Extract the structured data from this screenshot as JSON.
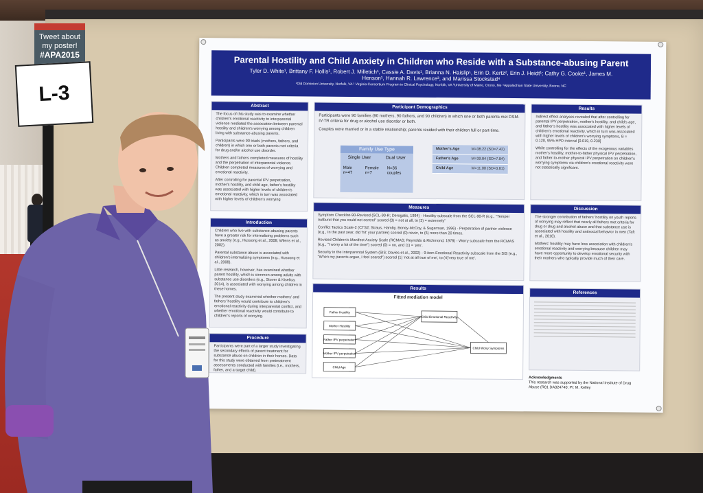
{
  "signs": {
    "tweet_line1": "Tweet about",
    "tweet_line2": "my poster!",
    "tweet_tag": "#APA2015",
    "booth": "L-3"
  },
  "poster": {
    "title": "Parental Hostility and Child Anxiety in Children who Reside with a Substance-abusing Parent",
    "authors": "Tyler D. White¹, Brittany F. Hollis¹, Robert J. Milletich¹, Cassie A. Davis¹, Brianna N. Haislip¹, Erin D. Kertz², Erin J. Heidt¹; Cathy G. Cooke¹, James M. Henson¹, Hannah R. Lawrence³, and Marissa Stockstad⁴",
    "affiliations": "¹Old Dominion University, Norfolk, VA ² Virginia Consortium Program in Clinical Psychology, Norfolk, VA ³University of Maine, Orono, Me ⁴Appalachian State University, Boone, NC",
    "abstract": {
      "heading": "Abstract",
      "paras": [
        "The focus of this study was to examine whether children's emotional reactivity to interparental violence mediated the association between parental hostility and children's worrying among children living with substance-abusing parents.",
        "Participants were 90 triads (mothers, fathers, and children) in which one or both parents met criteria for drug and/or alcohol use disorder.",
        "Mothers and fathers completed measures of hostility and the perpetration of interparental violence. Children completed measures of worrying and emotional reactivity.",
        "After controlling for parental IPV perpetration, mother's hostility, and child age, father's hostility was associated with higher levels of children's emotional reactivity, which in turn was associated with higher levels of children's worrying"
      ]
    },
    "introduction": {
      "heading": "Introduction",
      "paras": [
        "Children who live with substance-abusing parents have a greater risk for internalizing problems such as anxiety (e.g., Hussong et al., 2008; Wilens et al., 2002).",
        "Parental substance abuse is associated with children's internalizing symptoms (e.g., Hussong et al., 2008).",
        "Little research, however, has examined whether parent hostility, which is common among adults with substance use disorders (e.g., Stover & Kiselica, 2014), is associated with worrying among children in these homes.",
        "The present study examined whether mothers' and fathers' hostility would contribute to children's emotional reactivity during interparental conflict, and whether emotional reactivity would contribute to children's reports of worrying."
      ]
    },
    "procedure": {
      "heading": "Procedure",
      "paras": [
        "Participants were part of a larger study investigating the secondary effects of parent treatment for substance abuse on children in their homes. Data for this study were obtained from pretreatment assessments conducted with families (i.e., mothers, father, and a target child)."
      ]
    },
    "demographics": {
      "heading": "Participant Demographics",
      "paras": [
        "Participants were 90 families (90 mothers, 90 fathers, and 90 children) in which one or both parents met DSM-IV-TR criteria for drug or alcohol use disorder or both.",
        "Couples were married or in a stable relationship; parents resided with their children full or part-time."
      ],
      "family_table": {
        "header": "Family Use Type",
        "col1": "Single User",
        "col2": "Dual User",
        "r1": "Male n=47",
        "r2": "Female n=7",
        "r3": "N=36 couples"
      },
      "ages": [
        {
          "label": "Mother's Age",
          "value": "M=38.22 (SD=7.42)"
        },
        {
          "label": "Father's Age",
          "value": "M=39.84 (SD=7.84)"
        },
        {
          "label": "Child Age",
          "value": "M=11.00 (SD=3.81)"
        }
      ]
    },
    "measures": {
      "heading": "Measures",
      "paras": [
        "Symptom Checklist-90-Revised (SCL-90-R; Derogatis, 1994) - Hostility subscale from the SCL-90-R (e.g., \"Temper outburst that you could not control\" scored (0) = not at all, to (3) = extremely\"",
        "Conflict Tactics Scale-2 (CTS2; Straus, Hamby, Boney-McCoy, & Sugarman, 1996) - Perpetration of partner violence (e.g., In the past year, did 'hit' your partner) scored (0) never, to (6) more than 20 times.",
        "Revised Children's Manifest Anxiety Scale (RCMAS; Reynolds & Richmond, 1978) - Worry subscale from the RCMAS (e.g., \"I worry a lot of the time\") scored (0) = no, and (1) = 'yes'.",
        "Security in the Interparental System (SIS; Davies et al., 2002) - 9-item Emotional Reactivity subscale from the SIS (e.g., \"When my parents argue, I feel scared\") scored (1) 'not at all true of me', to (4)'very true of me'."
      ]
    },
    "results_mid": {
      "heading": "Results",
      "model_title": "Fitted mediation model",
      "nodes_left": [
        "Father Hostility",
        "Mother Hostility",
        "Father IPV perpetration",
        "Mother IPV perpetration",
        "Child Age"
      ],
      "node_mid": "Child Emotional Reactivity",
      "node_right": "Child Worry Symptoms"
    },
    "results_right": {
      "heading": "Results",
      "paras": [
        "Indirect effect analyses revealed that after controlling for parental IPV perpetration, mother's hostility, and child's age, and father's hostility was associated with higher levels of children's emotional reactivity, which in turn was associated with higher levels of children's worrying symptoms, B = 0.120, 95% HPD interval [0.019, 0.230]",
        "While controlling for the effects of the exogenous variables mother's hostility, mother-to-father physical IPV perpetration, and father-to-mother physical IPV perpetration on children's worrying symptoms via children's emotional reactivity were not statistically significant."
      ]
    },
    "discussion": {
      "heading": "Discussion",
      "paras": [
        "The stronger contribution of fathers' hostility on youth reports of worrying may reflect that nearly all fathers met criteria for drug or drug and alcohol abuse and that substance use is associated with hostility and antisocial behavior in men (Taft et al., 2010).",
        "Mothers' hostility may have less association with children's emotional reactivity and worrying because children may have more opportunity to develop emotional security with their mothers who typically provide much of their care."
      ]
    },
    "references": {
      "heading": "References"
    },
    "acknowledgments": {
      "heading": "Acknowledgments",
      "text": "This research was supported by the National Institute of Drug Abuse (R01 DA024740; PI: M. Kelley"
    }
  }
}
